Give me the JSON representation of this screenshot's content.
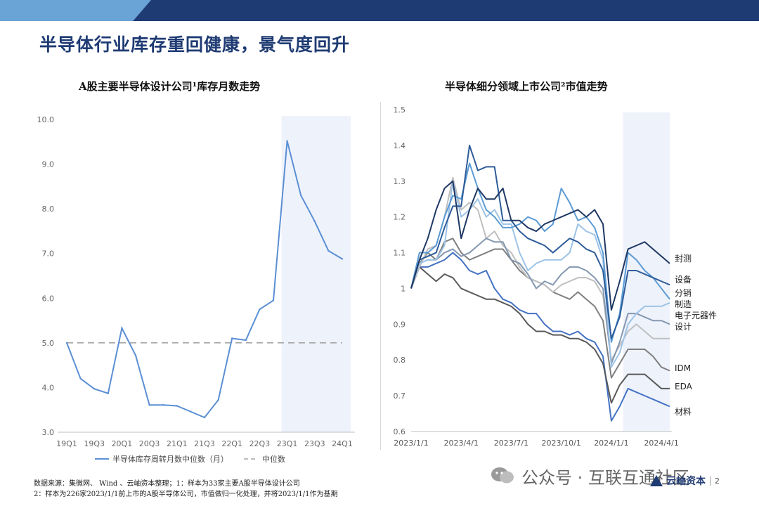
{
  "page": {
    "title": "半导体行业库存重回健康，景气度回升"
  },
  "colors": {
    "brand_dark": "#1f3b73",
    "brand_light": "#6aa3d6",
    "line_main": "#5b8fd4",
    "shade": "#eef2fb",
    "median": "#a6a6a6"
  },
  "chart_data": [
    {
      "type": "line",
      "title": "A股主要半导体设计公司¹库存月数走势",
      "x": [
        "19Q1",
        "19Q2",
        "19Q3",
        "19Q4",
        "20Q1",
        "20Q2",
        "20Q3",
        "20Q4",
        "21Q1",
        "21Q2",
        "21Q3",
        "21Q4",
        "22Q1",
        "22Q2",
        "22Q3",
        "22Q4",
        "23Q1",
        "23Q2",
        "23Q3",
        "23Q4",
        "24Q1"
      ],
      "x_tick_labels": [
        "19Q1",
        "19Q3",
        "20Q1",
        "20Q3",
        "21Q1",
        "21Q3",
        "22Q1",
        "22Q3",
        "23Q1",
        "23Q3",
        "24Q1"
      ],
      "series": [
        {
          "name": "半导体库存周转月数中位数（月）",
          "values": [
            5.0,
            4.2,
            3.97,
            3.87,
            5.33,
            4.72,
            3.61,
            3.61,
            3.59,
            3.46,
            3.33,
            3.72,
            5.1,
            5.06,
            5.75,
            5.95,
            9.52,
            8.3,
            7.72,
            7.06,
            6.88
          ]
        },
        {
          "name": "中位数",
          "values": [
            5.0,
            5.0,
            5.0,
            5.0,
            5.0,
            5.0,
            5.0,
            5.0,
            5.0,
            5.0,
            5.0,
            5.0,
            5.0,
            5.0,
            5.0,
            5.0,
            5.0,
            5.0,
            5.0,
            5.0,
            5.0
          ]
        }
      ],
      "yticks": [
        "3.0",
        "4.0",
        "5.0",
        "6.0",
        "7.0",
        "8.0",
        "9.0",
        "10.0"
      ],
      "ylim": [
        3.0,
        10.0
      ],
      "shaded_range": [
        "23Q1",
        "24Q1"
      ],
      "legend": {
        "position": "bottom",
        "main_label": "半导体库存周转月数中位数（月）",
        "median_label": "中位数"
      }
    },
    {
      "type": "line",
      "title": "半导体细分领域上市公司²市值走势",
      "x": [
        "2023/1/1",
        "2023/1/15",
        "2023/2/1",
        "2023/2/15",
        "2023/3/1",
        "2023/3/15",
        "2023/4/1",
        "2023/4/15",
        "2023/5/1",
        "2023/5/15",
        "2023/6/1",
        "2023/6/15",
        "2023/7/1",
        "2023/7/15",
        "2023/8/1",
        "2023/8/15",
        "2023/9/1",
        "2023/9/15",
        "2023/10/1",
        "2023/10/15",
        "2023/11/1",
        "2023/11/15",
        "2023/12/1",
        "2023/12/15",
        "2024/1/1",
        "2024/1/15",
        "2024/2/1",
        "2024/2/15",
        "2024/3/1",
        "2024/3/15",
        "2024/4/1",
        "2024/4/15"
      ],
      "x_tick_labels": [
        "2023/1/1",
        "2023/4/1",
        "2023/7/1",
        "2023/10/1",
        "2024/1/1",
        "2024/4/1"
      ],
      "yticks": [
        "0.6",
        "0.7",
        "0.8",
        "0.9",
        "1",
        "1.1",
        "1.2",
        "1.3",
        "1.4",
        "1.5"
      ],
      "ylim": [
        0.6,
        1.5
      ],
      "shaded_range": [
        "2024/2/1",
        "2024/4/15"
      ],
      "series": [
        {
          "name": "封测",
          "color": "#1f3864",
          "values": [
            1.0,
            1.08,
            1.14,
            1.22,
            1.28,
            1.3,
            1.14,
            1.22,
            1.28,
            1.25,
            1.25,
            1.28,
            1.19,
            1.19,
            1.17,
            1.16,
            1.18,
            1.19,
            1.2,
            1.21,
            1.22,
            1.2,
            1.22,
            1.18,
            0.94,
            1.02,
            1.11,
            1.12,
            1.13,
            1.11,
            1.09,
            1.07
          ]
        },
        {
          "name": "设备",
          "color": "#2e5c9a",
          "values": [
            1.0,
            1.08,
            1.09,
            1.1,
            1.17,
            1.23,
            1.23,
            1.4,
            1.33,
            1.34,
            1.34,
            1.19,
            1.19,
            1.16,
            1.14,
            1.13,
            1.12,
            1.1,
            1.12,
            1.14,
            1.13,
            1.11,
            1.1,
            1.05,
            0.86,
            0.92,
            1.05,
            1.05,
            1.04,
            1.03,
            1.02,
            1.01
          ]
        },
        {
          "name": "分销",
          "color": "#5b9bd5",
          "values": [
            1.0,
            1.1,
            1.1,
            1.12,
            1.2,
            1.26,
            1.25,
            1.35,
            1.28,
            1.22,
            1.2,
            1.17,
            1.17,
            1.18,
            1.2,
            1.19,
            1.16,
            1.18,
            1.28,
            1.24,
            1.19,
            1.2,
            1.17,
            1.1,
            0.85,
            0.93,
            1.1,
            1.08,
            1.05,
            1.03,
            1.0,
            0.97
          ]
        },
        {
          "name": "制造",
          "color": "#9dc3e6",
          "values": [
            1.0,
            1.07,
            1.08,
            1.08,
            1.12,
            1.3,
            1.2,
            1.22,
            1.25,
            1.2,
            1.22,
            1.18,
            1.18,
            1.1,
            1.05,
            1.07,
            1.08,
            1.08,
            1.08,
            1.1,
            1.18,
            1.16,
            1.15,
            1.08,
            0.78,
            0.82,
            0.9,
            0.93,
            0.95,
            0.95,
            0.95,
            0.96
          ]
        },
        {
          "name": "电子元器件",
          "color": "#8497b0",
          "values": [
            1.0,
            1.07,
            1.08,
            1.08,
            1.1,
            1.11,
            1.09,
            1.1,
            1.12,
            1.14,
            1.13,
            1.13,
            1.08,
            1.07,
            1.04,
            1.0,
            1.02,
            1.01,
            1.04,
            1.06,
            1.06,
            1.05,
            1.03,
            1.0,
            0.79,
            0.85,
            0.93,
            0.93,
            0.92,
            0.91,
            0.91,
            0.9
          ]
        },
        {
          "name": "设计",
          "color": "#bfbfbf",
          "values": [
            1.0,
            1.06,
            1.11,
            1.12,
            1.2,
            1.31,
            1.22,
            1.24,
            1.22,
            1.14,
            1.16,
            1.12,
            1.1,
            1.06,
            1.03,
            1.02,
            1.01,
            0.99,
            1.01,
            1.02,
            1.03,
            1.03,
            1.02,
            0.98,
            0.8,
            0.84,
            0.88,
            0.9,
            0.88,
            0.86,
            0.86,
            0.86
          ]
        },
        {
          "name": "IDM",
          "color": "#7f7f7f",
          "values": [
            1.0,
            1.07,
            1.1,
            1.08,
            1.13,
            1.14,
            1.1,
            1.08,
            1.09,
            1.1,
            1.11,
            1.11,
            1.08,
            1.05,
            1.03,
            1.02,
            1.01,
            0.99,
            0.98,
            0.97,
            0.99,
            0.97,
            0.95,
            0.91,
            0.75,
            0.79,
            0.83,
            0.83,
            0.83,
            0.81,
            0.78,
            0.77
          ]
        },
        {
          "name": "EDA",
          "color": "#595959",
          "values": [
            1.0,
            1.06,
            1.04,
            1.02,
            1.04,
            1.03,
            1.0,
            0.99,
            0.98,
            0.97,
            0.97,
            0.96,
            0.95,
            0.93,
            0.9,
            0.88,
            0.88,
            0.87,
            0.87,
            0.86,
            0.86,
            0.85,
            0.83,
            0.79,
            0.68,
            0.73,
            0.76,
            0.76,
            0.76,
            0.74,
            0.72,
            0.72
          ]
        },
        {
          "name": "材料",
          "color": "#4472c4",
          "values": [
            1.0,
            1.06,
            1.06,
            1.07,
            1.08,
            1.1,
            1.08,
            1.05,
            1.04,
            1.05,
            1.0,
            0.97,
            0.96,
            0.94,
            0.93,
            0.93,
            0.9,
            0.88,
            0.88,
            0.87,
            0.88,
            0.86,
            0.85,
            0.81,
            0.63,
            0.67,
            0.72,
            0.71,
            0.7,
            0.69,
            0.68,
            0.67
          ]
        }
      ]
    }
  ],
  "footer": {
    "note1": "数据来源：集微网、 Wind 、云岫资本整理；1：样本为33家主要A股半导体设计公司",
    "note2": "2：样本为226家2023/1/1前上市的A股半导体公司，市值做归一化处理，并将2023/1/1作为基期"
  },
  "wechat": {
    "text": "公众号 · 互联互通社区"
  },
  "logo": {
    "text": "云岫资本",
    "page_number": "2"
  }
}
